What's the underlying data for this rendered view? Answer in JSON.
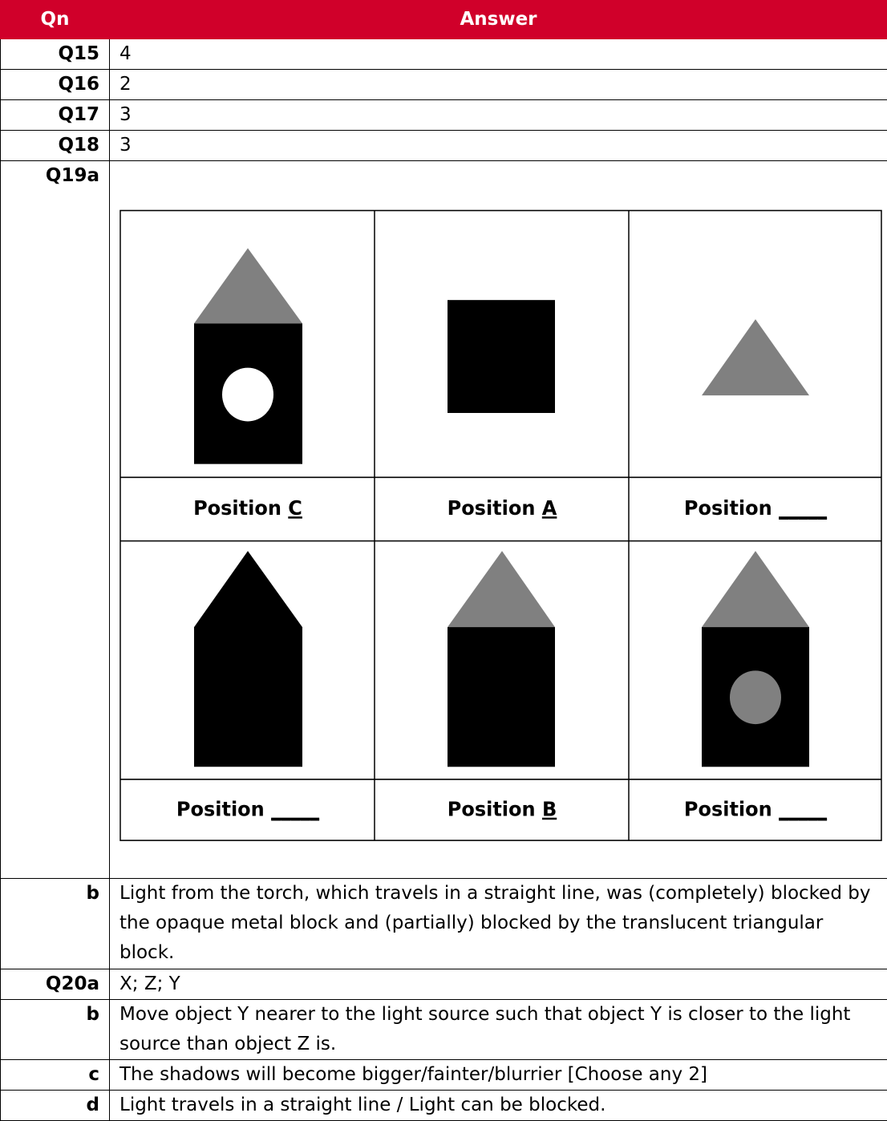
{
  "table": {
    "header": [
      "Qn",
      "Answer"
    ],
    "rows": [
      {
        "qn": "Q15",
        "answer": "4"
      },
      {
        "qn": "Q16",
        "answer": "2"
      },
      {
        "qn": "Q17",
        "answer": "3"
      },
      {
        "qn": "Q18",
        "answer": "3"
      },
      {
        "qn": "Q19a",
        "figure": {
          "cells": [
            {
              "label": "Position",
              "answer": "C"
            },
            {
              "label": "Position",
              "answer": "A"
            },
            {
              "label": "Position",
              "answer": "_____"
            },
            {
              "label": "Position",
              "answer": "_____"
            },
            {
              "label": "Position",
              "answer": "B"
            },
            {
              "label": "Position",
              "answer": "_____"
            }
          ]
        }
      },
      {
        "qn": "b",
        "answer": "Light from the torch, which travels in a straight line, was (completely) blocked by the opaque metal block and (partially) blocked by the translucent triangular block."
      },
      {
        "qn": "Q20a",
        "answer": "X; Z; Y"
      },
      {
        "qn": "b",
        "answer": "Move object Y nearer to the light source such that object Y is closer to the light source than object Z is."
      },
      {
        "qn": "c",
        "answer": "The shadows will become bigger/fainter/blurrier [Choose any 2]"
      },
      {
        "qn": "d",
        "answer": "Light travels in a straight line / Light can be blocked."
      }
    ]
  }
}
